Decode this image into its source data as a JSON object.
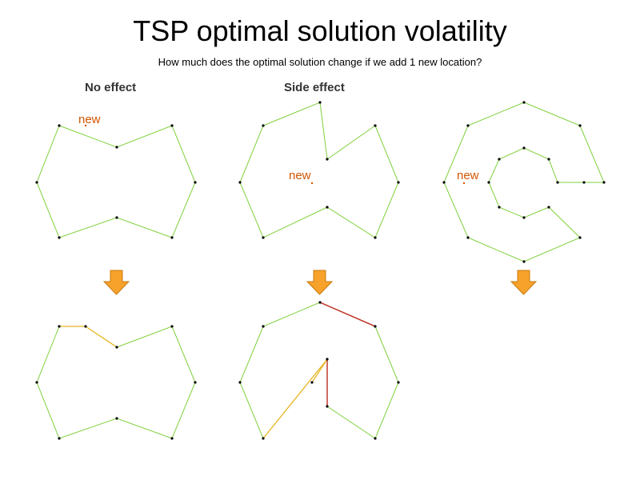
{
  "title": "TSP optimal solution volatility",
  "subtitle": "How much does the optimal solution change if we add 1 new location?",
  "columns": [
    {
      "label": "No effect"
    },
    {
      "label": "Side effect"
    },
    {
      "label": ""
    }
  ],
  "new_point_label": "new",
  "colors": {
    "tour_edge": "#7fd13b",
    "changed_edge_light": "#e6b422",
    "changed_edge_dark": "#c0392b",
    "node": "#000000",
    "new_label": "#d35400",
    "arrow_fill": "#f7a22b",
    "arrow_stroke": "#c77a0f"
  },
  "arrows": [
    {
      "name": "arrow-no-effect",
      "icon": "down-arrow-icon"
    },
    {
      "name": "arrow-side-effect",
      "icon": "down-arrow-icon"
    },
    {
      "name": "arrow-spiral",
      "icon": "down-arrow-icon"
    }
  ]
}
